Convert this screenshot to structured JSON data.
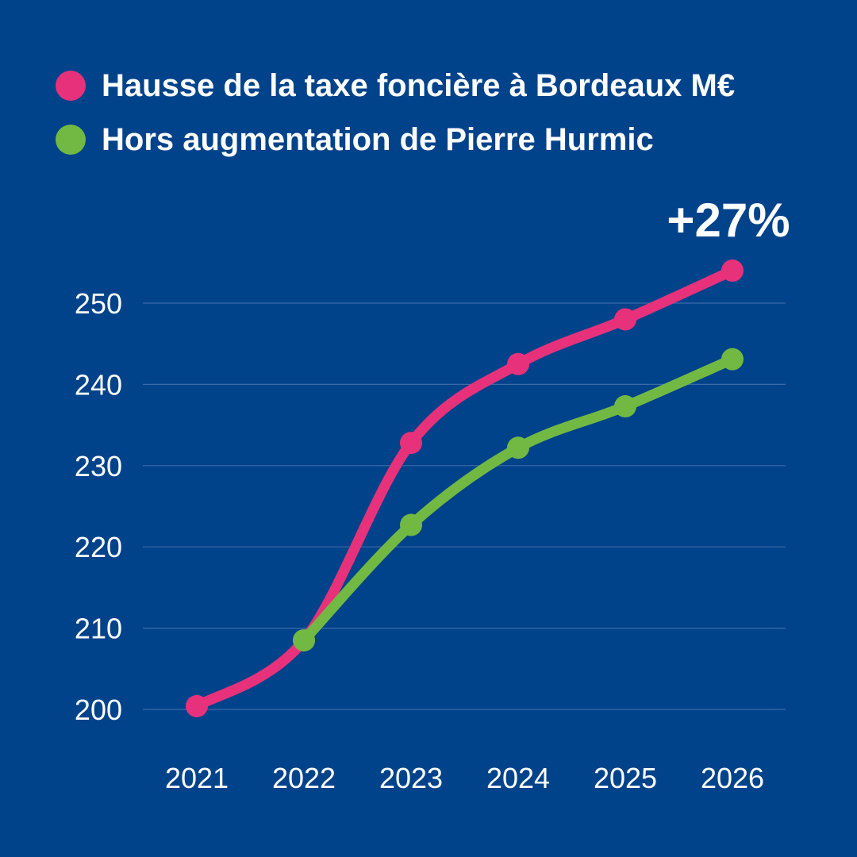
{
  "chart_data": {
    "type": "line",
    "title": "",
    "xlabel": "",
    "ylabel": "",
    "categories": [
      "2021",
      "2022",
      "2023",
      "2024",
      "2025",
      "2026"
    ],
    "series": [
      {
        "name": "Hausse de la taxe foncière à Bordeaux M€",
        "values": [
          200.4,
          208.5,
          232.8,
          242.5,
          248.0,
          254.0
        ],
        "color": "#e8317b"
      },
      {
        "name": "Hors augmentation de Pierre Hurmic",
        "values": [
          null,
          208.5,
          222.7,
          232.2,
          237.3,
          243.1
        ],
        "color": "#72b944"
      }
    ],
    "y_ticks": [
      "200",
      "210",
      "220",
      "230",
      "240",
      "250"
    ],
    "ylim": [
      200,
      250
    ],
    "grid": true,
    "legend_position": "top-left",
    "annotation": "+27%"
  },
  "colors": {
    "background": "#01438b",
    "grid": "#3d6aa8",
    "text": "#ffffff"
  }
}
